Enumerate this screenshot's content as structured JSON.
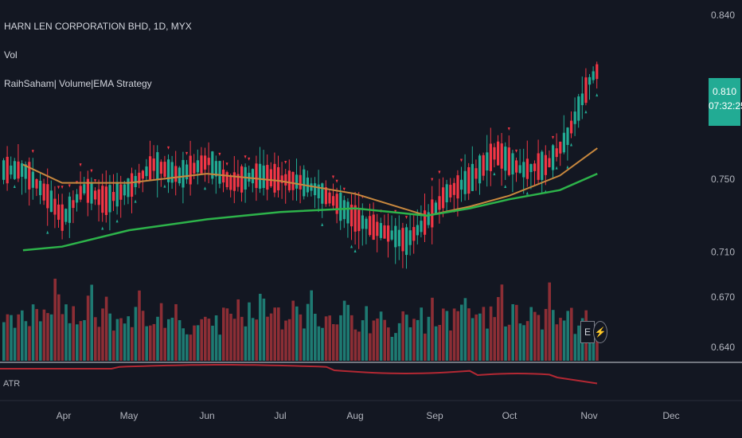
{
  "header": {
    "symbol_title": "HARN LEN CORPORATION BHD, 1D, MYX",
    "volume_label": "Vol",
    "strategy_label": "RaihSaham| Volume|EMA Strategy",
    "atr_label": "ATR"
  },
  "price_badge": {
    "price": "0.810",
    "countdown": "07:32:25"
  },
  "colors": {
    "background": "#131722",
    "up": "#22ab94",
    "down": "#f23645",
    "ema_fast": "#c8883e",
    "ema_slow": "#2db34a",
    "atr_line": "#b22833",
    "volume_up": "#1e7a72",
    "volume_down": "#8c2e35"
  },
  "icons": {
    "e_button": "E",
    "flash_button": "lightning-icon"
  },
  "chart_data": {
    "type": "candlestick",
    "price_axis": {
      "ticks": [
        0.84,
        0.75,
        0.71,
        0.67,
        0.64
      ],
      "tick_labels": [
        "0.840",
        "0.750",
        "0.710",
        "0.670",
        "0.640"
      ]
    },
    "time_axis": {
      "labels": [
        "Apr",
        "May",
        "Jun",
        "Jul",
        "Aug",
        "Sep",
        "Oct",
        "Nov",
        "Dec"
      ]
    },
    "last_price": 0.81,
    "close_path": [
      {
        "date": "Mar 15",
        "close": 0.755
      },
      {
        "date": "Mar 25",
        "close": 0.74
      },
      {
        "date": "Apr 1",
        "close": 0.728
      },
      {
        "date": "Apr 10",
        "close": 0.745
      },
      {
        "date": "Apr 20",
        "close": 0.738
      },
      {
        "date": "May 1",
        "close": 0.746
      },
      {
        "date": "May 10",
        "close": 0.758
      },
      {
        "date": "May 20",
        "close": 0.752
      },
      {
        "date": "Jun 1",
        "close": 0.76
      },
      {
        "date": "Jun 10",
        "close": 0.748
      },
      {
        "date": "Jun 20",
        "close": 0.752
      },
      {
        "date": "Jul 1",
        "close": 0.75
      },
      {
        "date": "Jul 10",
        "close": 0.748
      },
      {
        "date": "Jul 20",
        "close": 0.74
      },
      {
        "date": "Aug 1",
        "close": 0.728
      },
      {
        "date": "Aug 10",
        "close": 0.722
      },
      {
        "date": "Aug 20",
        "close": 0.716
      },
      {
        "date": "Aug 28",
        "close": 0.728
      },
      {
        "date": "Sep 5",
        "close": 0.742
      },
      {
        "date": "Sep 15",
        "close": 0.75
      },
      {
        "date": "Sep 25",
        "close": 0.765
      },
      {
        "date": "Oct 5",
        "close": 0.755
      },
      {
        "date": "Oct 15",
        "close": 0.758
      },
      {
        "date": "Oct 22",
        "close": 0.772
      },
      {
        "date": "Nov 1",
        "close": 0.805
      },
      {
        "date": "Nov 4",
        "close": 0.81
      }
    ],
    "series": [
      {
        "name": "EMA fast",
        "values": [
          {
            "date": "Mar 15",
            "v": 0.758
          },
          {
            "date": "Apr 1",
            "v": 0.748
          },
          {
            "date": "May 1",
            "v": 0.748
          },
          {
            "date": "Jun 1",
            "v": 0.753
          },
          {
            "date": "Jul 1",
            "v": 0.749
          },
          {
            "date": "Aug 1",
            "v": 0.742
          },
          {
            "date": "Aug 28",
            "v": 0.73
          },
          {
            "date": "Sep 15",
            "v": 0.735
          },
          {
            "date": "Oct 1",
            "v": 0.741
          },
          {
            "date": "Oct 20",
            "v": 0.752
          },
          {
            "date": "Nov 4",
            "v": 0.767
          }
        ]
      },
      {
        "name": "EMA slow",
        "values": [
          {
            "date": "Mar 15",
            "v": 0.711
          },
          {
            "date": "Apr 1",
            "v": 0.713
          },
          {
            "date": "May 1",
            "v": 0.722
          },
          {
            "date": "Jun 1",
            "v": 0.728
          },
          {
            "date": "Jul 1",
            "v": 0.732
          },
          {
            "date": "Aug 1",
            "v": 0.734
          },
          {
            "date": "Aug 28",
            "v": 0.73
          },
          {
            "date": "Sep 15",
            "v": 0.734
          },
          {
            "date": "Oct 1",
            "v": 0.739
          },
          {
            "date": "Oct 20",
            "v": 0.744
          },
          {
            "date": "Nov 4",
            "v": 0.753
          }
        ]
      }
    ],
    "volume": {
      "ylim": [
        0,
        1
      ],
      "relative_levels": [
        0.55,
        0.6,
        0.75,
        0.4,
        0.65,
        0.8,
        0.6,
        0.55,
        0.9,
        0.7,
        0.5,
        0.85,
        0.6,
        0.7,
        1.0,
        0.8,
        0.6,
        0.75,
        0.65,
        0.9,
        0.55,
        0.7,
        0.6,
        0.8,
        0.95,
        0.6,
        0.5,
        0.7,
        0.85,
        0.6,
        0.45,
        0.55,
        0.7,
        0.65,
        0.6,
        0.5,
        0.75,
        1.0,
        0.7,
        0.6,
        0.55,
        0.5,
        0.65,
        0.7,
        0.45,
        0.55,
        0.6,
        0.8,
        0.5,
        0.55,
        0.4,
        0.45,
        0.5,
        0.6,
        0.7,
        0.55
      ]
    }
  }
}
